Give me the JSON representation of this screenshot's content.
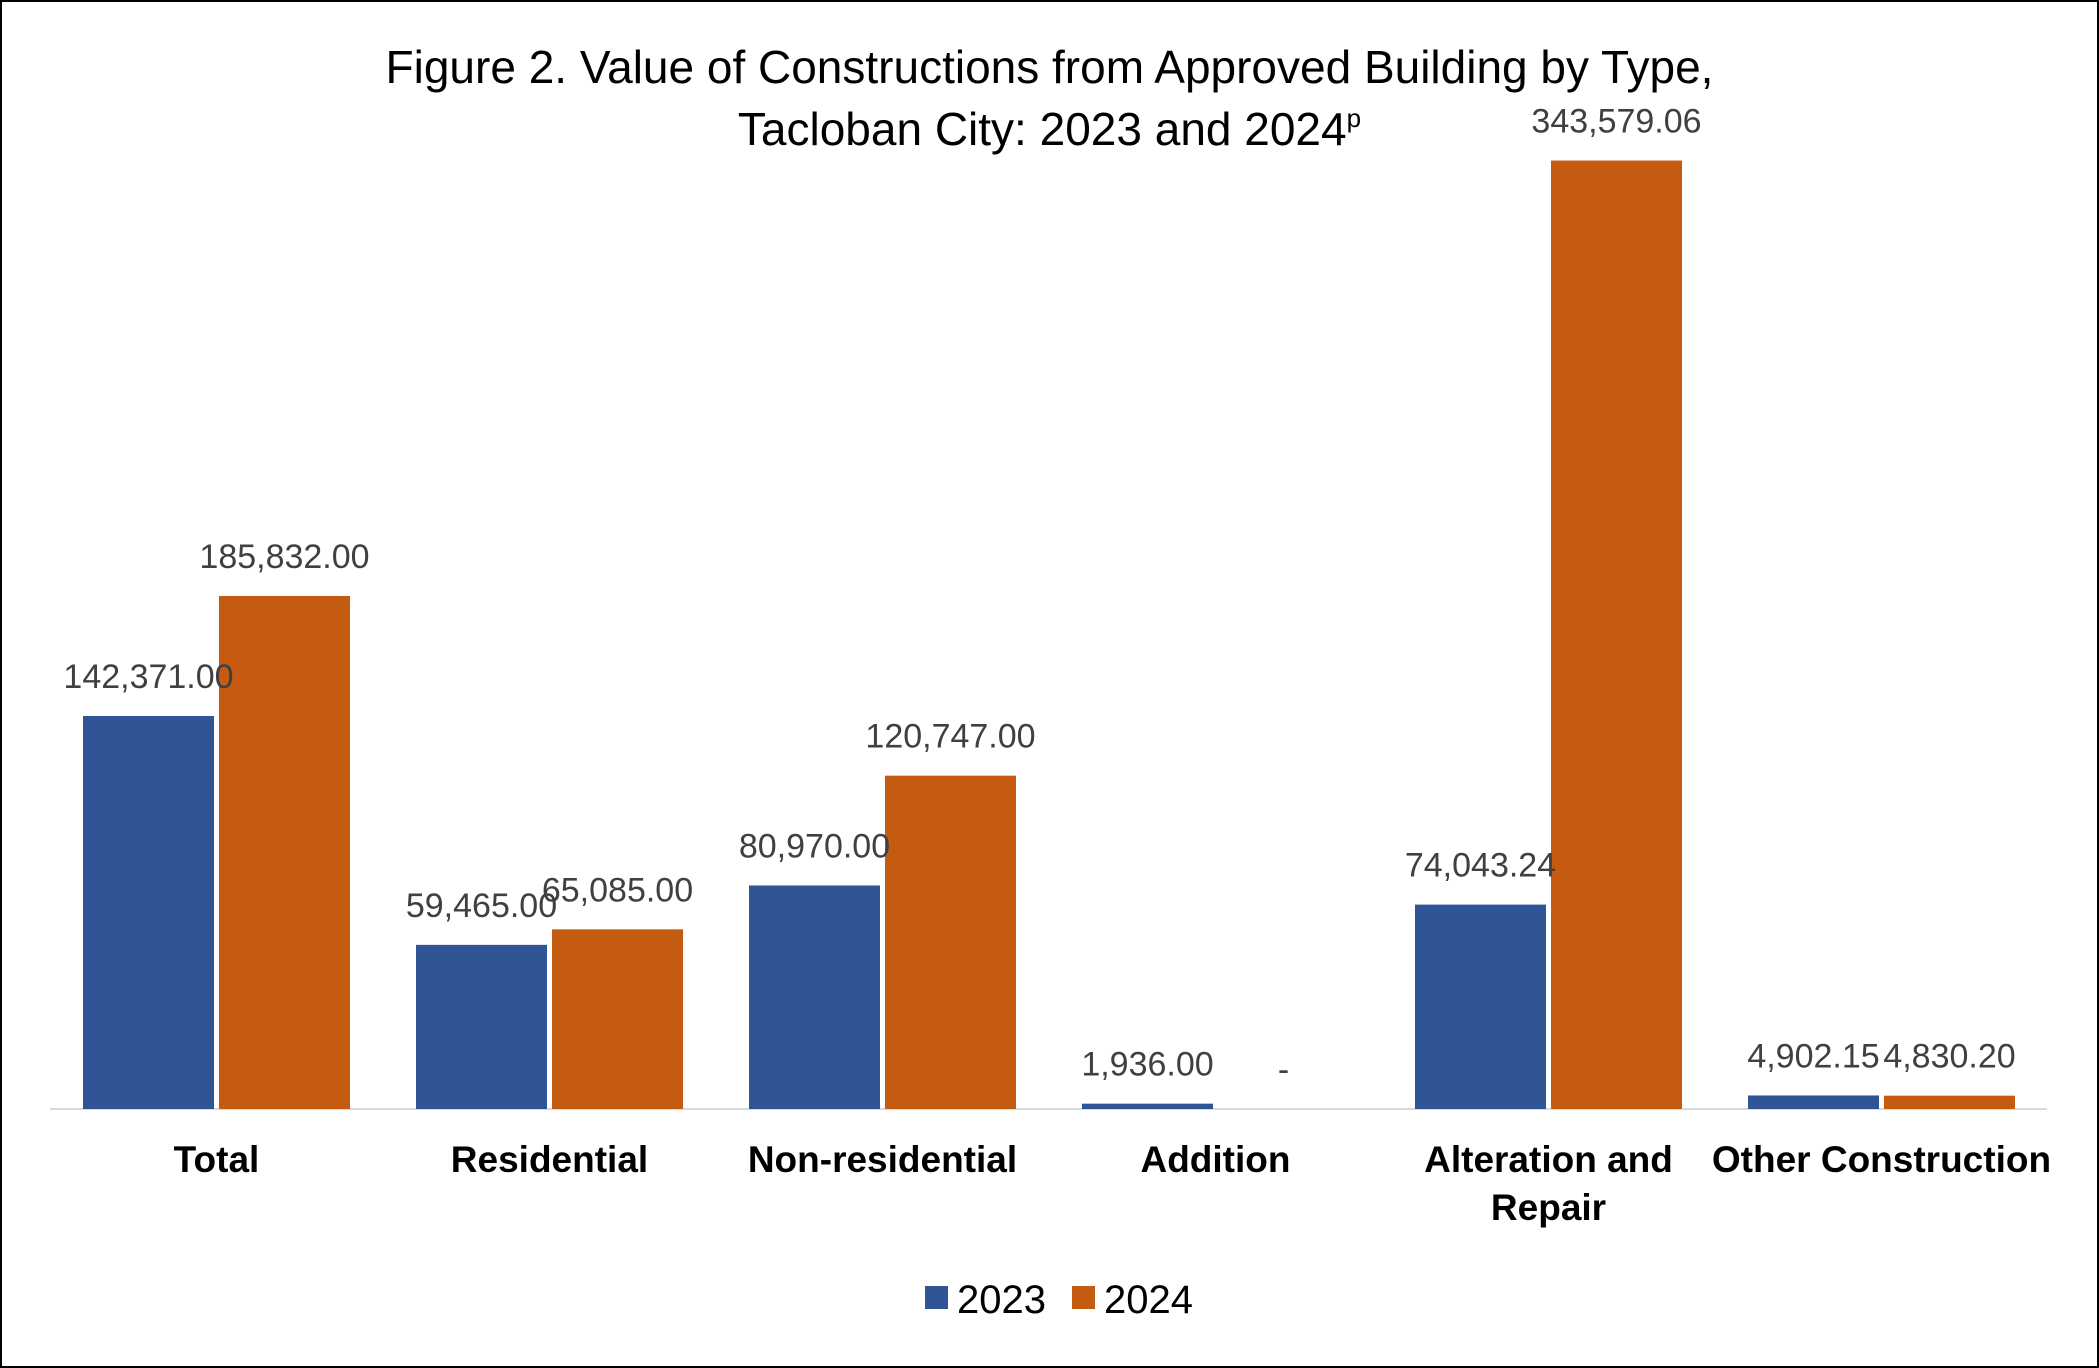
{
  "chart_data": {
    "type": "bar",
    "title_line1": "Figure 2. Value of Constructions from Approved Building by Type,",
    "title_line2": "Tacloban City: 2023 and 2024",
    "title_superscript": "p",
    "xlabel": "",
    "ylabel": "",
    "ylim": [
      0,
      380000
    ],
    "grid": false,
    "legend_position": "bottom",
    "categories": [
      [
        "Total"
      ],
      [
        "Residential"
      ],
      [
        "Non-residential"
      ],
      [
        "Addition"
      ],
      [
        "Alteration and",
        "Repair"
      ],
      [
        "Other Construction"
      ]
    ],
    "series": [
      {
        "name": "2023",
        "color": "#2F5597",
        "values": [
          142371.0,
          59465.0,
          80970.0,
          1936.0,
          74043.24,
          4902.15
        ],
        "labels": [
          "142,371.00",
          "59,465.00",
          "80,970.00",
          "1,936.00",
          "74,043.24",
          "4,902.15"
        ]
      },
      {
        "name": "2024",
        "color": "#C55A11",
        "values": [
          185832.0,
          65085.0,
          120747.0,
          null,
          343579.06,
          4830.2
        ],
        "labels": [
          "185,832.00",
          "65,085.00",
          "120,747.00",
          "-",
          "343,579.06",
          "4,830.20"
        ]
      }
    ]
  }
}
